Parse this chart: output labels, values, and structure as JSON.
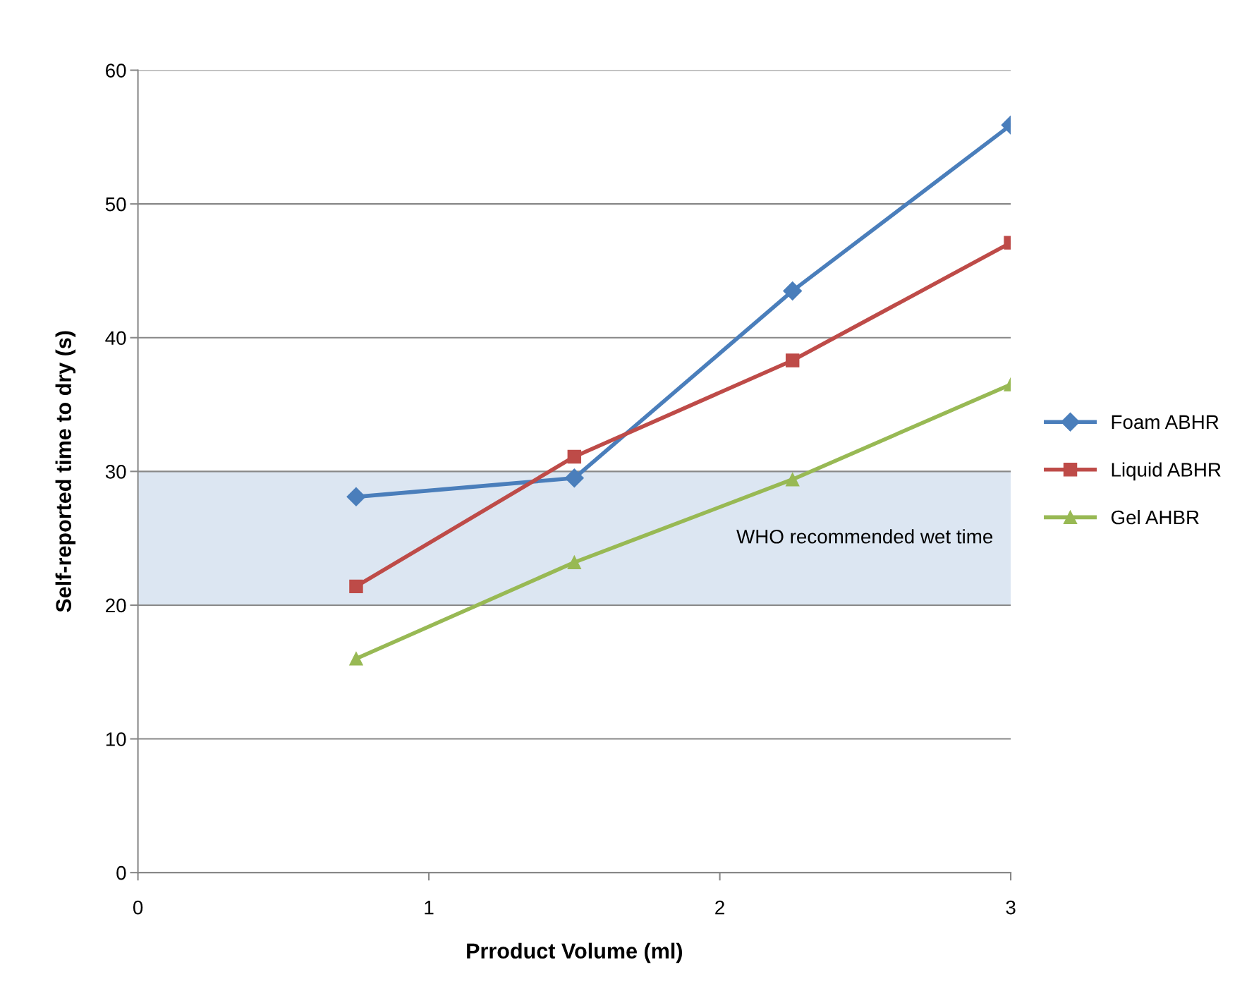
{
  "chart_data": {
    "type": "line",
    "xlabel": "Prroduct Volume (ml)",
    "ylabel": "Self-reported time to dry (s)",
    "xlim": [
      0,
      3
    ],
    "xticks": [
      0,
      1,
      2,
      3
    ],
    "ylim": [
      0,
      60
    ],
    "yticks": [
      0,
      10,
      20,
      30,
      40,
      50,
      60
    ],
    "grid": "y",
    "legend": "right",
    "series": [
      {
        "name": "Foam ABHR",
        "color": "#4a7ebb",
        "marker": "diamond",
        "x": [
          0.75,
          1.5,
          2.25,
          3
        ],
        "values": [
          28.1,
          29.5,
          43.5,
          55.9
        ]
      },
      {
        "name": "Liquid ABHR",
        "color": "#be4b48",
        "marker": "square",
        "x": [
          0.75,
          1.5,
          2.25,
          3
        ],
        "values": [
          21.4,
          31.1,
          38.3,
          47.1
        ]
      },
      {
        "name": "Gel AHBR",
        "color": "#98b954",
        "marker": "triangle",
        "x": [
          0.75,
          1.5,
          2.25,
          3
        ],
        "values": [
          16.0,
          23.2,
          29.4,
          36.5
        ]
      }
    ],
    "bands": [
      {
        "axis": "y",
        "from": 20,
        "to": 30,
        "label": "WHO recommended wet time",
        "color": "#dce6f2"
      }
    ]
  }
}
